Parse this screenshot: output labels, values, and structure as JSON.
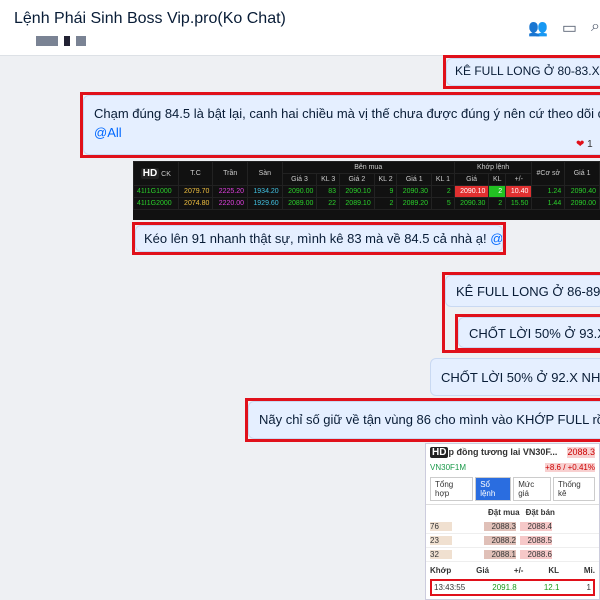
{
  "header": {
    "title": "Lệnh Phái Sinh Boss Vip.pro(Ko Chat)",
    "icons": [
      "add-member-icon",
      "video-call-icon",
      "search-icon"
    ]
  },
  "messages": [
    {
      "text": "KÊ FULL LONG Ở 80-83.X!",
      "mention": "@"
    },
    {
      "text": "Chạm đúng 84.5 là bật lại, canh hai chiều mà vị thế chưa được đúng ý nên cứ theo dõi cả nhà ạ",
      "mention": "@All",
      "reaction": "1"
    },
    {
      "text": "Kéo lên 91 nhanh thật sự, mình kê 83 mà về 84.5 cả nhà ạ!",
      "mention": "@All"
    },
    {
      "text": "KÊ FULL LONG Ở 86-89.X!",
      "mention": "@"
    },
    {
      "text": "CHỐT LỜI 50% Ở 93.X!",
      "mention": "@"
    },
    {
      "text": "CHỐT LỜI 50% Ở 92.X NHÉ!",
      "mention": "@"
    },
    {
      "text": "Nãy chỉ số giữ về tận vùng 86 cho mình vào KHỚP FULL rồi ạ!",
      "mention": "@"
    }
  ],
  "board": {
    "badge": "HD",
    "group1": "Bên mua",
    "group2": "Khớp lệnh",
    "headers": [
      "CK",
      "T.C",
      "Trần",
      "Sàn",
      "Giá 3",
      "KL 3",
      "Giá 2",
      "KL 2",
      "Giá 1",
      "KL 1",
      "Giá",
      "KL",
      "+/-",
      "#Cơ sở",
      "Giá 1"
    ],
    "rows": [
      [
        "41I1G1000",
        "2079.70",
        "2225.20",
        "1934.20",
        "2090.00",
        "83",
        "2090.10",
        "9",
        "2090.30",
        "2",
        "2090.10",
        "2",
        "10.40",
        "1.24",
        "2090.40"
      ],
      [
        "41I1G2000",
        "2074.80",
        "2220.00",
        "1929.60",
        "2089.00",
        "22",
        "2089.10",
        "2",
        "2089.20",
        "5",
        "2090.30",
        "2",
        "15.50",
        "1.44",
        "2090.00"
      ]
    ]
  },
  "panel": {
    "badge": "HD",
    "title": "p đồng tương lai VN30F...",
    "price": "2088.3",
    "symbol": "VN30F1M",
    "change": "+8.6 / +0.41%",
    "tabs": [
      "Tổng hợp",
      "Sổ lệnh",
      "Mức giá",
      "Thống kê"
    ],
    "active_tab": 1,
    "book_headers": [
      "Đặt mua",
      "Đặt bán"
    ],
    "book": [
      [
        "76",
        "2088.3",
        "2088.4"
      ],
      [
        "23",
        "2088.2",
        "2088.5"
      ],
      [
        "32",
        "2088.1",
        "2088.6"
      ]
    ],
    "trade_headers": [
      "Khớp",
      "Giá",
      "+/-",
      "KL",
      "Mi."
    ],
    "trade": [
      "13:43:55",
      "2091.8",
      "12.1",
      "1"
    ]
  }
}
